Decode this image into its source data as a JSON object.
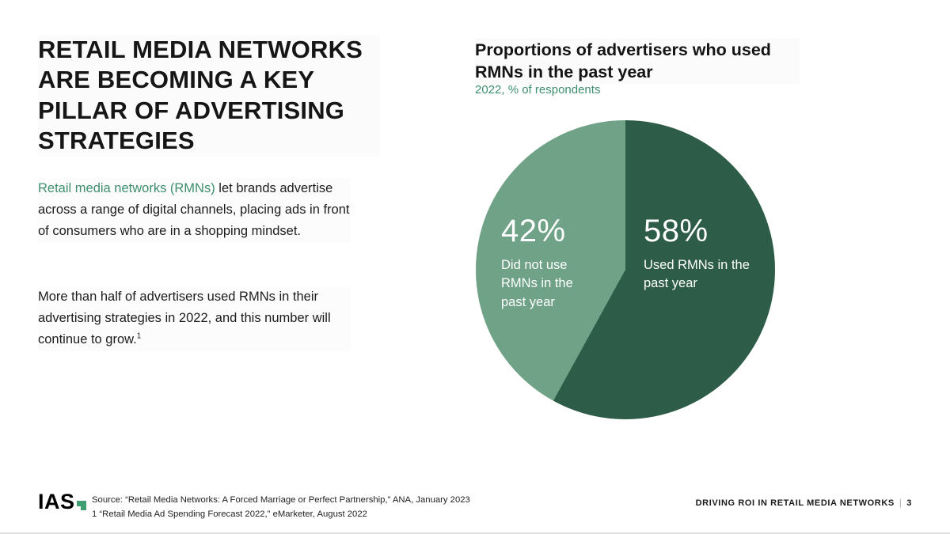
{
  "slide": {
    "title": "RETAIL MEDIA NETWORKS ARE BECOMING A KEY PILLAR OF ADVERTISING STRATEGIES",
    "para1_highlight": "Retail media networks (RMNs)",
    "para1_rest": " let brands advertise across a range of digital channels, placing ads in front of consumers who are in a shopping mindset.",
    "para2": "More than half of advertisers used RMNs in their advertising strategies in 2022, and this number will continue to grow.",
    "para2_superscript": "1"
  },
  "chart_data": {
    "type": "pie",
    "title": "Proportions of advertisers who used RMNs in the past year",
    "subtitle": "2022, % of respondents",
    "label_position": "inside",
    "legend": "none",
    "slices": [
      {
        "label": "Used RMNs in the past year",
        "value": 58,
        "value_label": "58%",
        "color": "#2d5c49"
      },
      {
        "label": "Did not use RMNs in the past year",
        "value": 42,
        "value_label": "42%",
        "color": "#6fa287"
      }
    ]
  },
  "colors": {
    "accent_green": "#3e8f6e",
    "pie_dark": "#2d5c49",
    "pie_light": "#6fa287",
    "text": "#1a1a1a"
  },
  "footer": {
    "logo": "IAS",
    "source_lines": [
      "Source: “Retail Media Networks: A Forced Marriage or Perfect Partnership,” ANA, January 2023",
      "1 “Retail Media Ad Spending Forecast 2022,” eMarketer, August 2022"
    ],
    "right_label": "DRIVING ROI IN RETAIL MEDIA NETWORKS",
    "separator": "|",
    "page_number": "3"
  }
}
